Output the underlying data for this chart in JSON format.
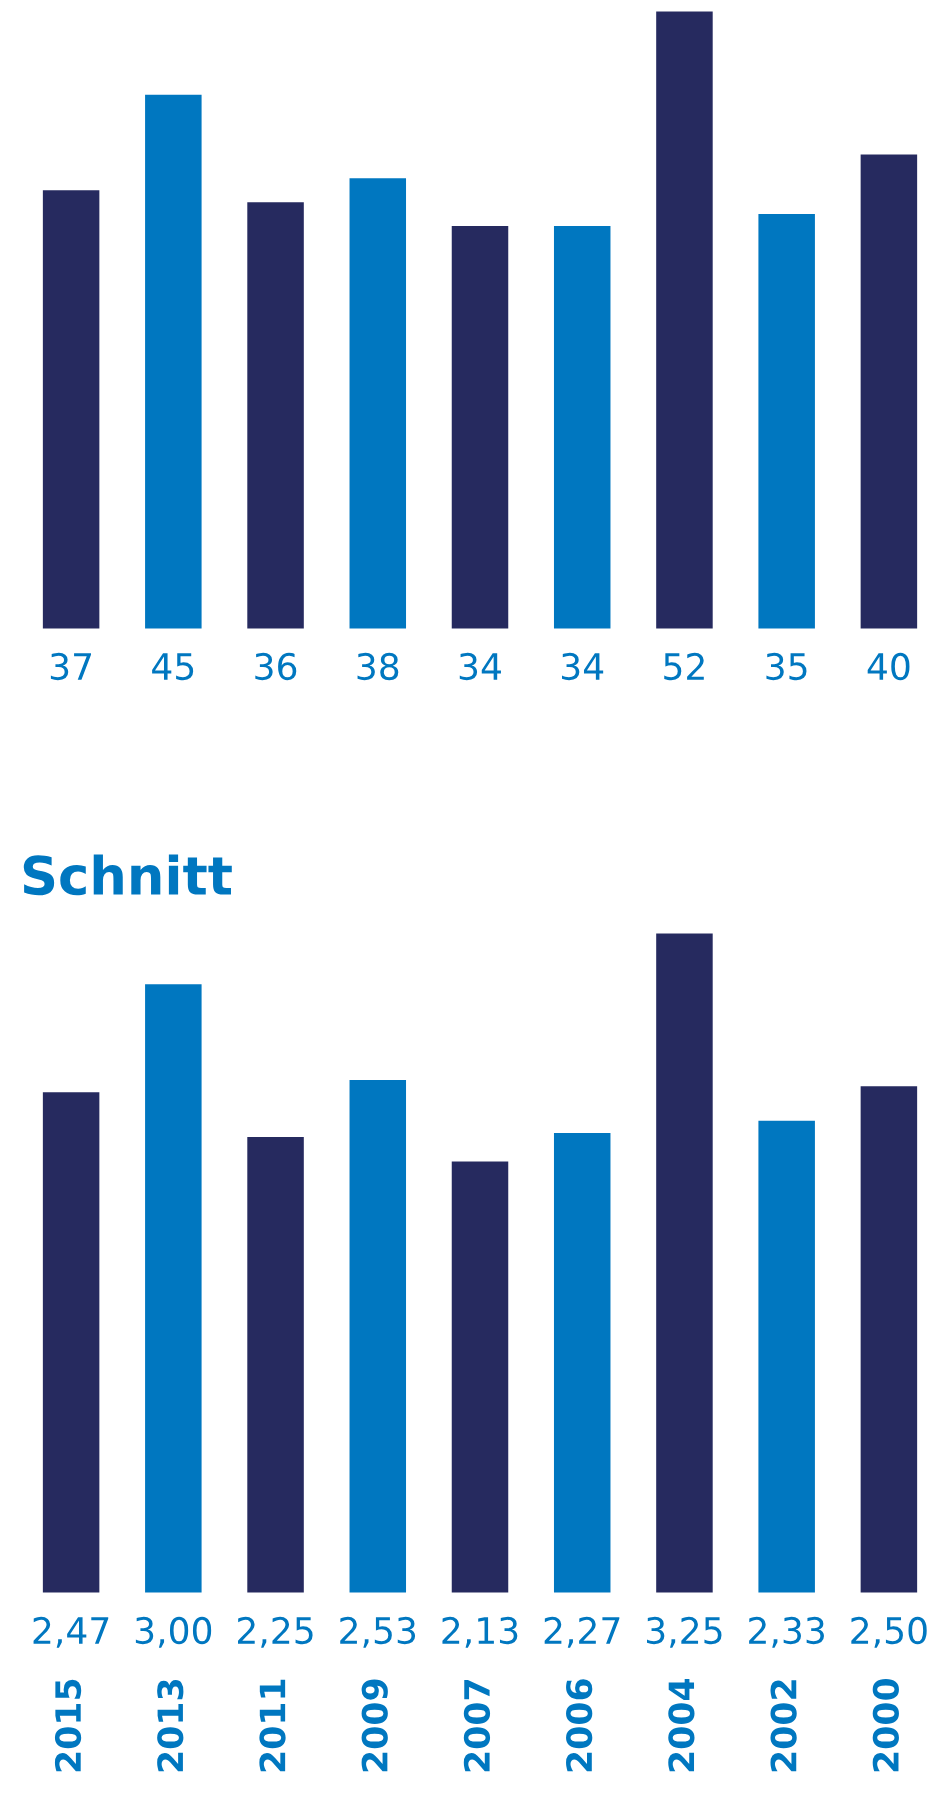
{
  "chart_data": [
    {
      "type": "bar",
      "categories": [
        "2015",
        "2013",
        "2011",
        "2009",
        "2007",
        "2006",
        "2004",
        "2002",
        "2000"
      ],
      "values": [
        37,
        45,
        36,
        38,
        34,
        34,
        52,
        35,
        40
      ],
      "colors": [
        "#262a5f",
        "#0077c0",
        "#262a5f",
        "#0077c0",
        "#262a5f",
        "#0077c0",
        "#262a5f",
        "#0077c0",
        "#262a5f"
      ],
      "data_labels": true,
      "tick_labels": false
    },
    {
      "type": "bar",
      "title": "Schnitt",
      "categories": [
        "2015",
        "2013",
        "2011",
        "2009",
        "2007",
        "2006",
        "2004",
        "2002",
        "2000"
      ],
      "values": [
        2.47,
        3.0,
        2.25,
        2.53,
        2.13,
        2.27,
        3.25,
        2.33,
        2.5
      ],
      "value_labels": [
        "2,47",
        "3,00",
        "2,25",
        "2,53",
        "2,13",
        "2,27",
        "3,25",
        "2,33",
        "2,50"
      ],
      "colors": [
        "#262a5f",
        "#0077c0",
        "#262a5f",
        "#0077c0",
        "#262a5f",
        "#0077c0",
        "#262a5f",
        "#0077c0",
        "#262a5f"
      ],
      "tick_labels": "x"
    }
  ]
}
